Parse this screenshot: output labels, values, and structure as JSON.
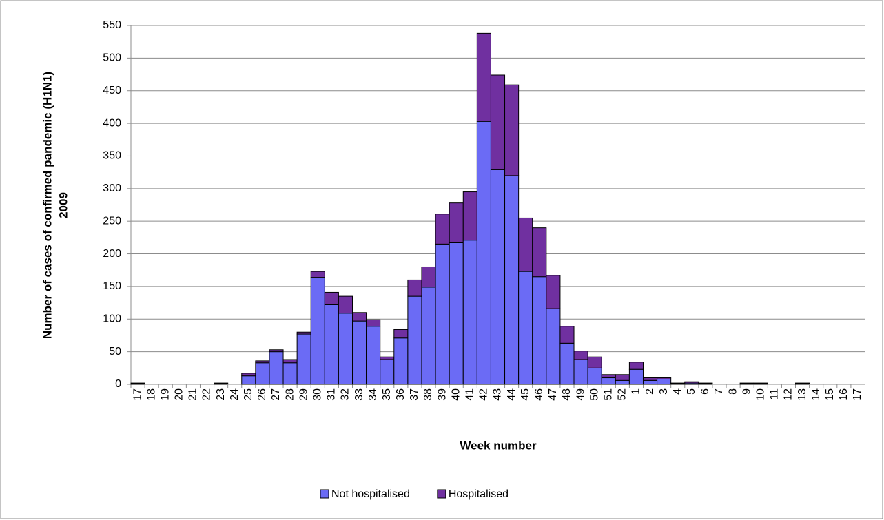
{
  "chart_data": {
    "type": "stacked-bar",
    "ylabel": [
      "Number of cases of confirmed pandemic (H1N1)",
      "2009"
    ],
    "xlabel": "Week number",
    "categories": [
      "17",
      "18",
      "19",
      "20",
      "21",
      "22",
      "23",
      "24",
      "25",
      "26",
      "27",
      "28",
      "29",
      "30",
      "31",
      "32",
      "33",
      "34",
      "35",
      "36",
      "37",
      "38",
      "39",
      "40",
      "41",
      "42",
      "43",
      "44",
      "45",
      "46",
      "47",
      "48",
      "49",
      "50",
      "51",
      "52",
      "1",
      "2",
      "3",
      "4",
      "5",
      "6",
      "7",
      "8",
      "9",
      "10",
      "11",
      "12",
      "13",
      "14",
      "15",
      "16",
      "17"
    ],
    "series": [
      {
        "name": "Not hospitalised",
        "color": "#6b6bf5",
        "values": [
          1,
          0,
          0,
          0,
          0,
          0,
          1,
          0,
          13,
          33,
          50,
          33,
          77,
          164,
          122,
          109,
          97,
          89,
          38,
          71,
          135,
          149,
          215,
          217,
          221,
          403,
          329,
          320,
          173,
          165,
          116,
          63,
          38,
          25,
          10,
          6,
          23,
          6,
          8,
          1,
          2,
          1,
          0,
          0,
          1,
          1,
          0,
          0,
          1,
          0,
          0,
          0,
          0
        ]
      },
      {
        "name": "Hospitalised",
        "color": "#7030a0",
        "values": [
          1,
          0,
          0,
          0,
          0,
          0,
          1,
          0,
          4,
          3,
          3,
          5,
          3,
          9,
          19,
          26,
          13,
          10,
          4,
          13,
          25,
          31,
          46,
          61,
          74,
          135,
          145,
          139,
          82,
          75,
          51,
          26,
          13,
          17,
          5,
          9,
          11,
          4,
          2,
          1,
          2,
          1,
          0,
          0,
          1,
          1,
          0,
          0,
          1,
          0,
          0,
          0,
          0
        ]
      }
    ],
    "ylim": [
      0,
      550
    ],
    "yticks": [
      0,
      50,
      100,
      150,
      200,
      250,
      300,
      350,
      400,
      450,
      500,
      550
    ],
    "grid": true,
    "legend": "bottom"
  }
}
